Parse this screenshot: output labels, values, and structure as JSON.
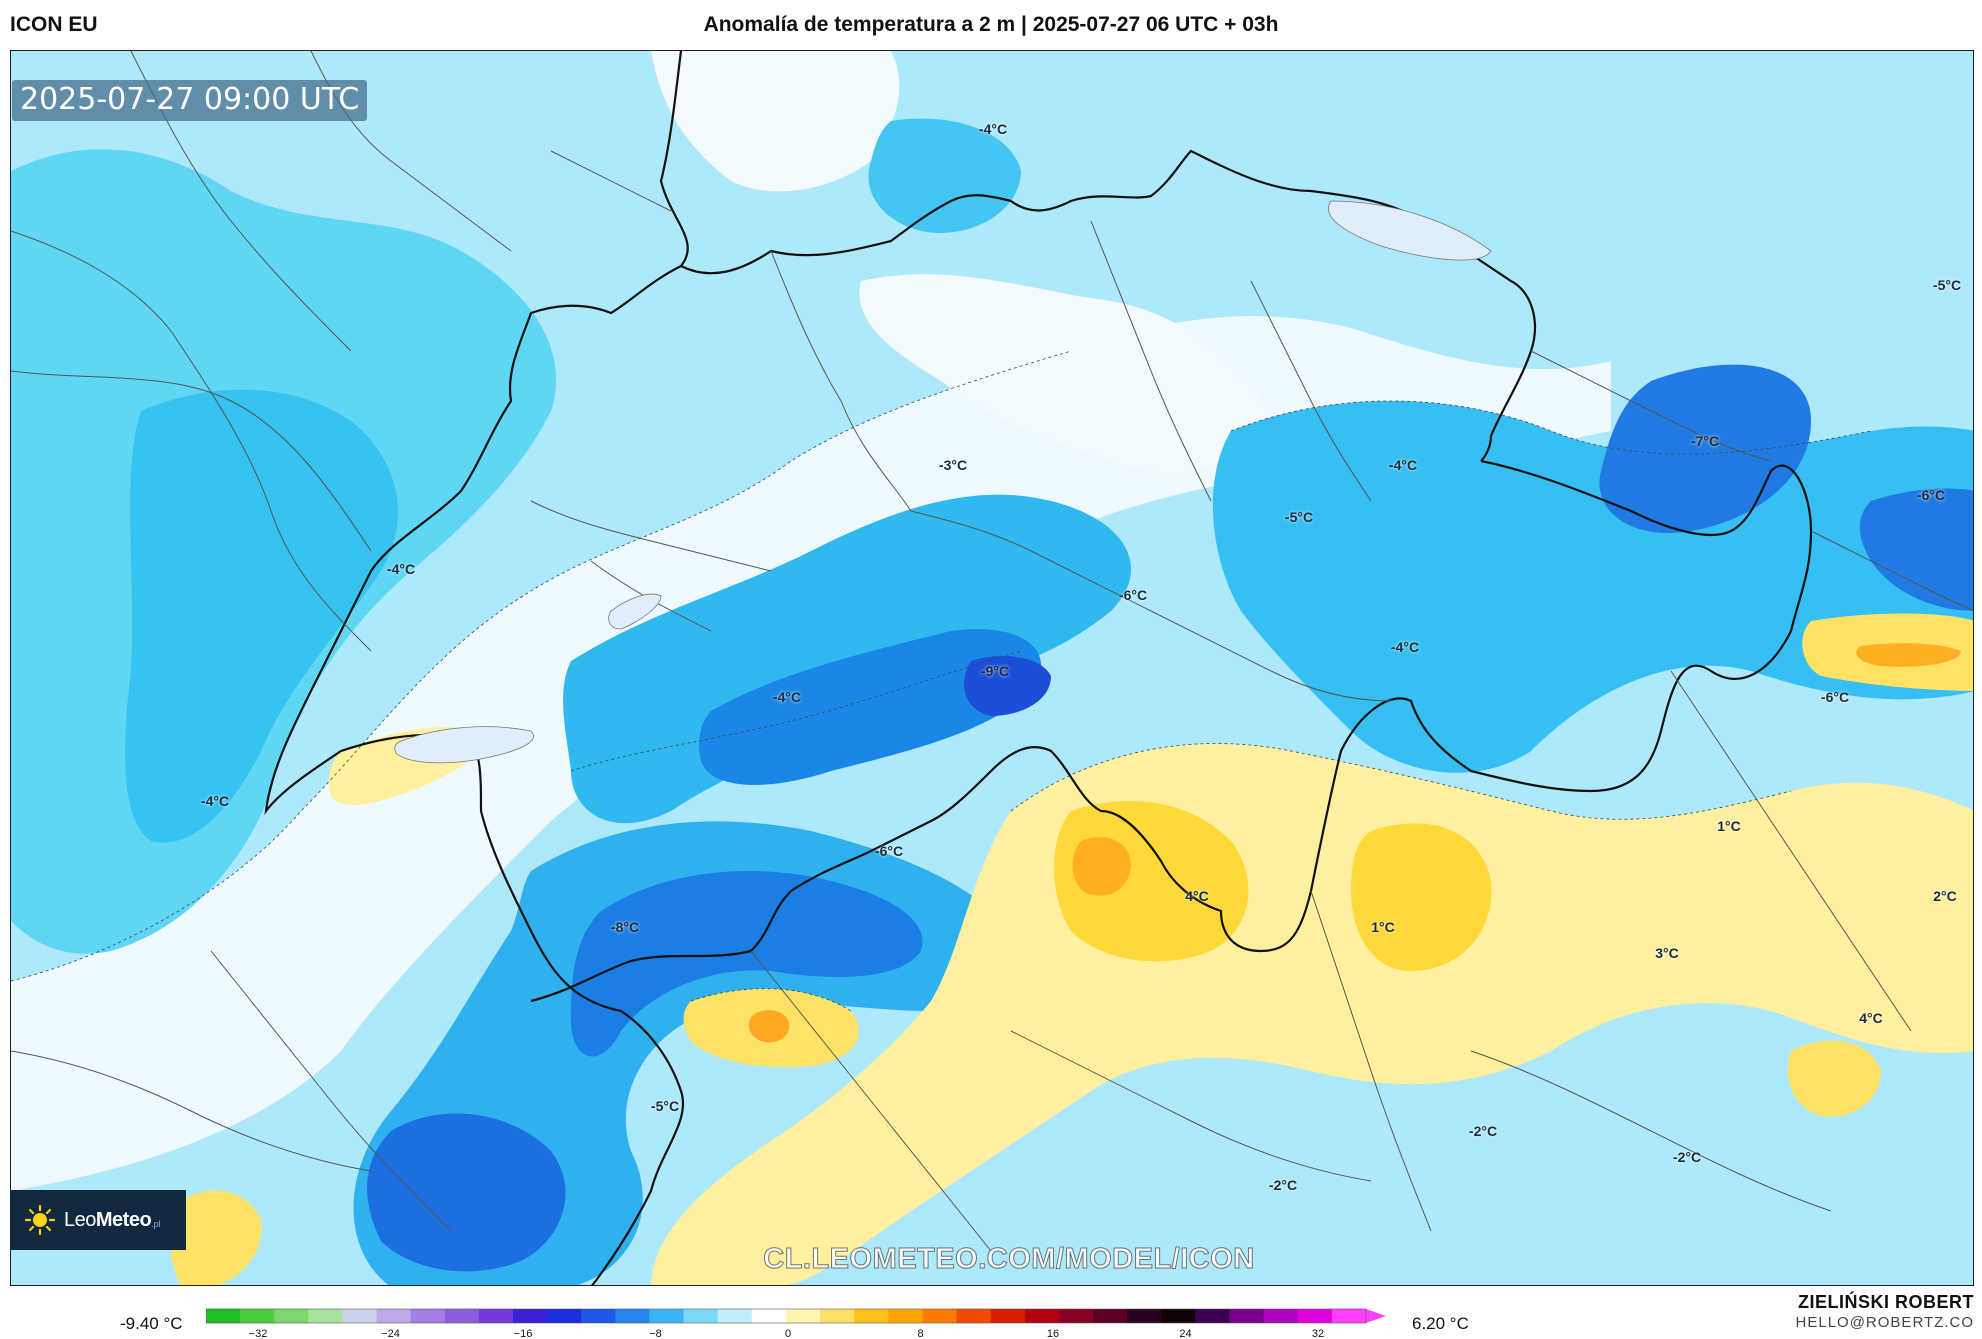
{
  "header": {
    "model_name": "ICON EU",
    "title": "Anomalía de temperatura a 2 m | 2025-07-27 06 UTC + 03h"
  },
  "map": {
    "valid_time": "2025-07-27 09:00 UTC",
    "watermark": "CL.LEOMETEO.COM/MODEL/ICON",
    "logo": {
      "brand_light": "Leo",
      "brand_bold": "Meteo",
      "suffix": ".pl"
    },
    "contour_labels": [
      "-4°C",
      "-3°C",
      "-4°C",
      "-5°C",
      "-5°C",
      "-7°C",
      "-6°C",
      "-6°C",
      "-4°C",
      "-9°C",
      "-4°C",
      "-6°C",
      "-4°C",
      "-6°C",
      "-4°C",
      "1°C",
      "-8°C",
      "4°C",
      "1°C",
      "2°C",
      "3°C",
      "4°C",
      "-5°C",
      "-2°C",
      "-2°C",
      "-2°C"
    ]
  },
  "colorbar": {
    "min_label": "-9.40 °C",
    "max_label": "6.20 °C",
    "ticks": [
      "−32",
      "−24",
      "−16",
      "−8",
      "0",
      "8",
      "16",
      "24",
      "32"
    ],
    "colors": [
      "#1fbf28",
      "#4ccd3c",
      "#7ad86a",
      "#a8e39b",
      "#c9d2ea",
      "#bfa9e8",
      "#a57fe3",
      "#8d5be0",
      "#7437db",
      "#3c1fd9",
      "#1a2ee0",
      "#1d58ea",
      "#2a86f1",
      "#3db4f5",
      "#7dd8f8",
      "#c2eefb",
      "#ffffff",
      "#fff4b0",
      "#ffe066",
      "#ffc21a",
      "#ffa300",
      "#ff7a00",
      "#f24b00",
      "#d81d00",
      "#b50014",
      "#8a0024",
      "#5c0028",
      "#2a0020",
      "#10000a",
      "#3b0050",
      "#7a0090",
      "#b000c0",
      "#e000e0",
      "#ff40ff"
    ],
    "colors_note_accent": "#1c2c3a"
  },
  "footer": {
    "author": "ZIELIŃSKI ROBERT",
    "contact": "HELLO@ROBERTZ.CO"
  }
}
